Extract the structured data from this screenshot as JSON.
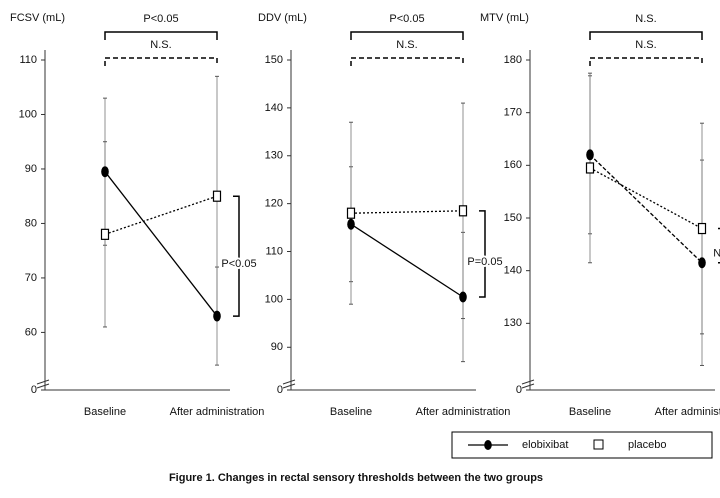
{
  "chart_data": [
    {
      "type": "line",
      "y_label": "FCSV (mL)",
      "categories": [
        "Baseline",
        "After administration"
      ],
      "ylim": [
        52,
        110
      ],
      "yticks": [
        60,
        70,
        80,
        90,
        100,
        110
      ],
      "break_tick": 0,
      "series": [
        {
          "name": "elobixibat",
          "color": "#000000",
          "marker": "circle",
          "line_style": "solid",
          "values": [
            89.5,
            63
          ],
          "errors": [
            13.5,
            9
          ]
        },
        {
          "name": "placebo",
          "color": "#000000",
          "marker": "square",
          "line_style": "dotted",
          "values": [
            78,
            85
          ],
          "errors": [
            17,
            22
          ]
        }
      ],
      "top_brackets": [
        "P<0.05",
        "N.S."
      ],
      "side_bracket": "P<0.05"
    },
    {
      "type": "line",
      "y_label": "DDV (mL)",
      "categories": [
        "Baseline",
        "After administration"
      ],
      "ylim": [
        84,
        150
      ],
      "yticks": [
        90,
        100,
        110,
        120,
        130,
        140,
        150
      ],
      "break_tick": 0,
      "series": [
        {
          "color": "#000000",
          "marker": "circle",
          "line_style": "solid",
          "values": [
            115.7,
            100.5
          ],
          "errors": [
            12,
            13.5
          ]
        },
        {
          "color": "#000000",
          "marker": "square",
          "line_style": "dotted",
          "values": [
            118,
            118.5
          ],
          "errors": [
            19,
            22.5
          ]
        }
      ],
      "top_brackets": [
        "P<0.05",
        "N.S."
      ],
      "side_bracket": "P=0.05"
    },
    {
      "type": "line",
      "y_label": "MTV (mL)",
      "categories": [
        "Baseline",
        "After administration"
      ],
      "ylim": [
        120,
        180
      ],
      "yticks": [
        130,
        140,
        150,
        160,
        170,
        180
      ],
      "break_tick": 0,
      "series": [
        {
          "color": "#000000",
          "marker": "circle",
          "line_style": "dashed",
          "values": [
            162,
            141.5
          ],
          "errors": [
            15,
            19.5
          ]
        },
        {
          "color": "#000000",
          "marker": "square",
          "line_style": "dotted",
          "values": [
            159.5,
            148
          ],
          "errors": [
            18,
            20
          ]
        }
      ],
      "top_brackets": [
        "N.S.",
        "N.S."
      ],
      "side_bracket": "N.S."
    }
  ],
  "caption": "Figure 1. Changes in rectal sensory thresholds between the two groups"
}
